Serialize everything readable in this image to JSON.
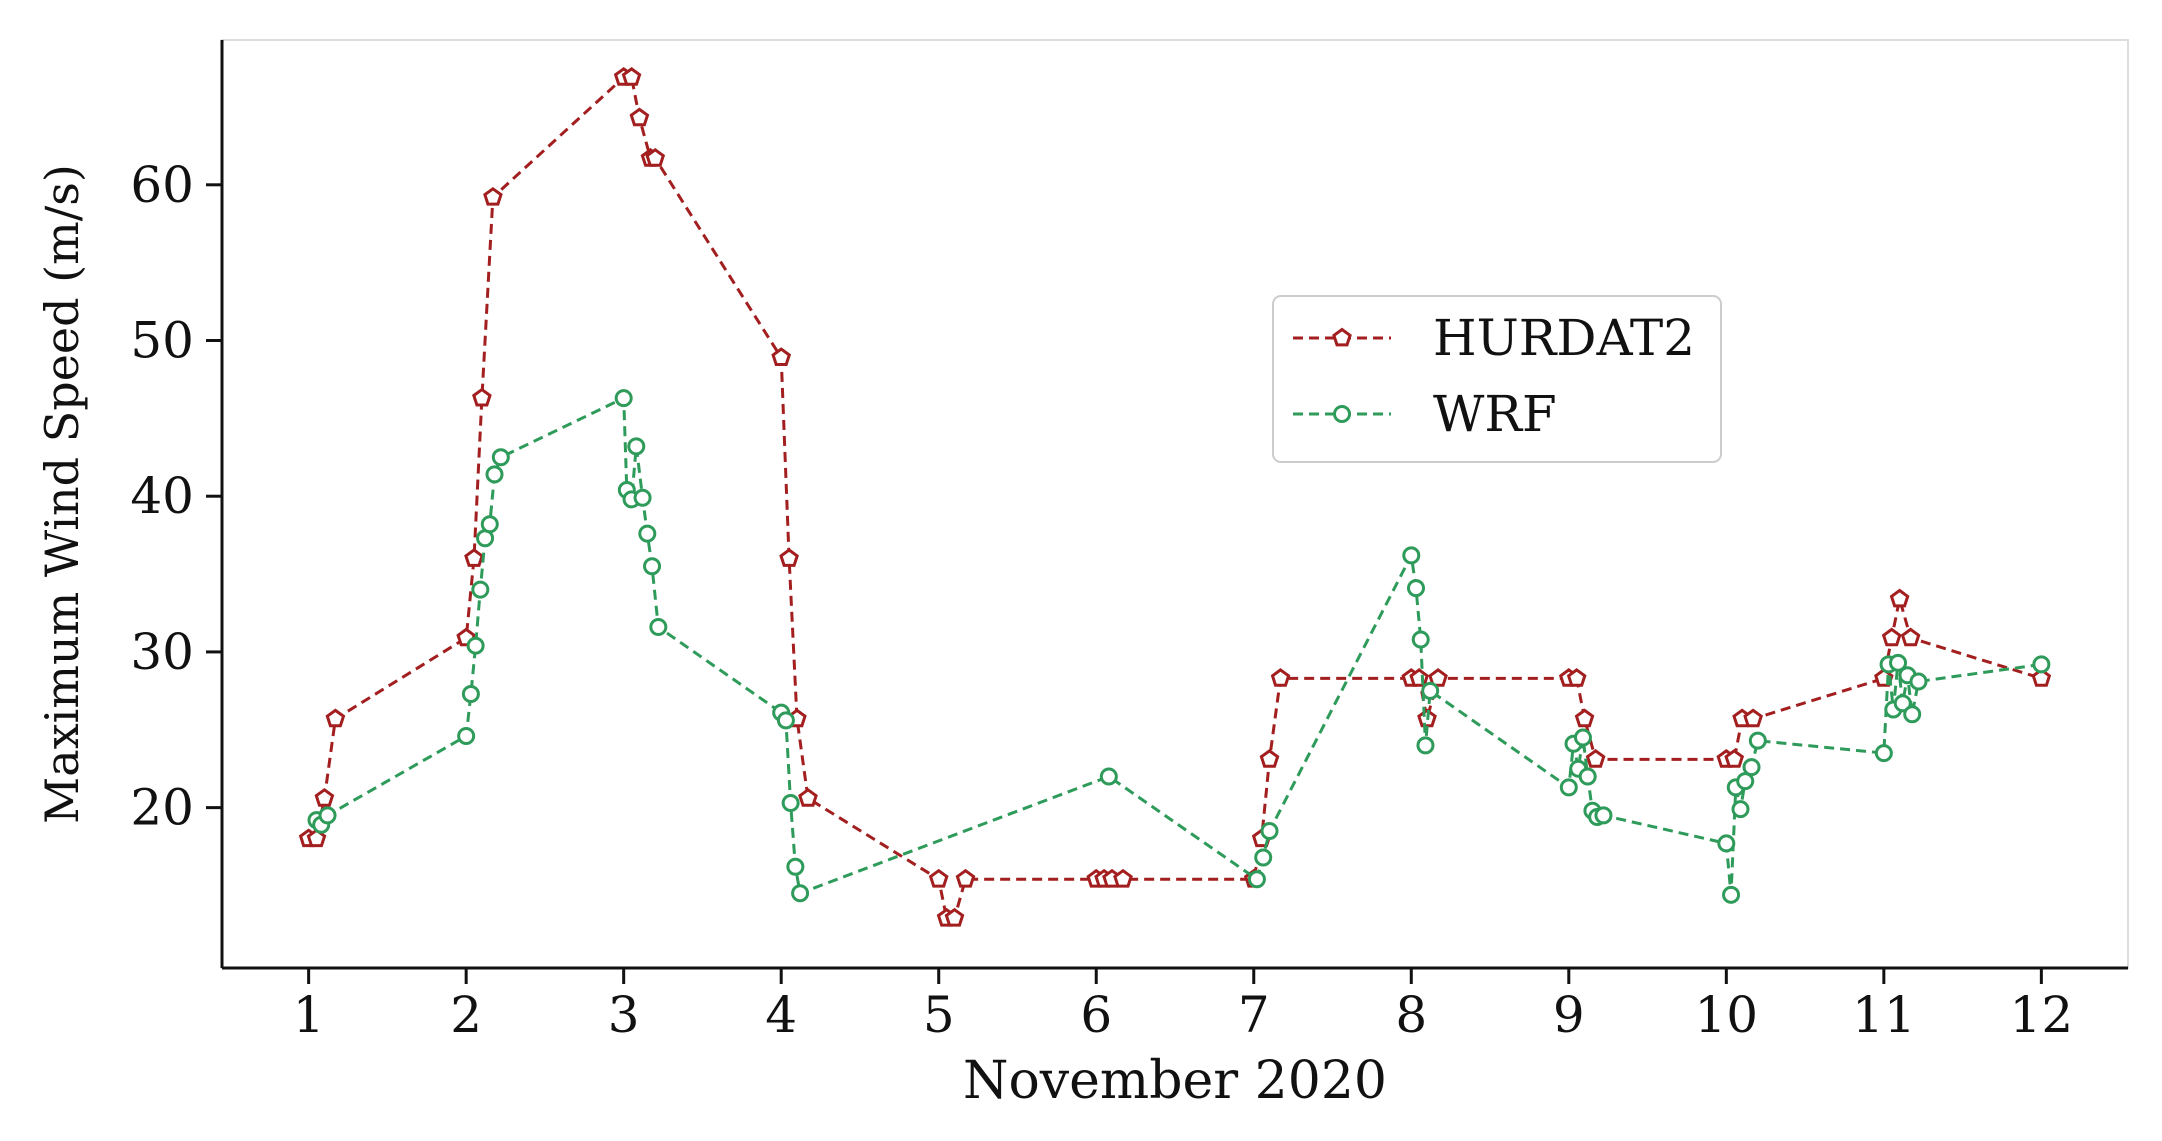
{
  "chart_data": {
    "type": "line",
    "title": "",
    "xlabel": "November 2020",
    "ylabel": "Maximum Wind Speed (m/s)",
    "xlim": [
      0.45,
      12.55
    ],
    "ylim": [
      9.7,
      69.3
    ],
    "xticks": [
      1,
      2,
      3,
      4,
      5,
      6,
      7,
      8,
      9,
      10,
      11,
      12
    ],
    "yticks": [
      20,
      30,
      40,
      50,
      60
    ],
    "grid": false,
    "legend_position": "center-right",
    "series": [
      {
        "name": "HURDAT2",
        "color": "#a31f1f",
        "marker": "pentagon",
        "linestyle": "dashed",
        "x": [
          1.0,
          1.05,
          1.1,
          1.17,
          2.0,
          2.05,
          2.1,
          2.17,
          3.0,
          3.05,
          3.1,
          3.17,
          3.2,
          4.0,
          4.05,
          4.1,
          4.17,
          5.0,
          5.05,
          5.1,
          5.17,
          6.0,
          6.05,
          6.1,
          6.17,
          7.0,
          7.05,
          7.1,
          7.17,
          8.0,
          8.05,
          8.1,
          8.17,
          9.0,
          9.05,
          9.1,
          9.17,
          10.0,
          10.05,
          10.1,
          10.17,
          11.0,
          11.05,
          11.1,
          11.17,
          12.0
        ],
        "y": [
          18.0,
          18.0,
          20.6,
          25.7,
          30.9,
          36.0,
          46.3,
          59.2,
          66.9,
          66.9,
          64.3,
          61.7,
          61.7,
          48.9,
          36.0,
          25.7,
          20.6,
          15.4,
          12.9,
          12.9,
          15.4,
          15.4,
          15.4,
          15.4,
          15.4,
          15.4,
          18.0,
          23.1,
          28.3,
          28.3,
          28.3,
          25.7,
          28.3,
          28.3,
          28.3,
          25.7,
          23.1,
          23.1,
          23.1,
          25.7,
          25.7,
          28.3,
          30.9,
          33.4,
          30.9,
          28.3
        ]
      },
      {
        "name": "WRF",
        "color": "#2e9b5a",
        "marker": "circle",
        "linestyle": "dashed",
        "x": [
          1.05,
          1.08,
          1.12,
          2.0,
          2.03,
          2.06,
          2.09,
          2.12,
          2.15,
          2.18,
          2.22,
          3.0,
          3.02,
          3.05,
          3.08,
          3.12,
          3.15,
          3.18,
          3.22,
          4.0,
          4.03,
          4.06,
          4.09,
          4.12,
          6.08,
          7.02,
          7.06,
          7.1,
          8.0,
          8.03,
          8.06,
          8.09,
          8.12,
          9.0,
          9.03,
          9.06,
          9.09,
          9.12,
          9.15,
          9.18,
          9.22,
          10.0,
          10.03,
          10.06,
          10.09,
          10.12,
          10.16,
          10.2,
          11.0,
          11.03,
          11.06,
          11.09,
          11.12,
          11.15,
          11.18,
          11.22,
          12.0
        ],
        "y": [
          19.2,
          18.9,
          19.5,
          24.6,
          27.3,
          30.4,
          34.0,
          37.3,
          38.2,
          41.4,
          42.5,
          46.3,
          40.4,
          39.8,
          43.2,
          39.9,
          37.6,
          35.5,
          31.6,
          26.1,
          25.6,
          20.3,
          16.2,
          14.5,
          22.0,
          15.4,
          16.8,
          18.5,
          36.2,
          34.1,
          30.8,
          24.0,
          27.5,
          21.3,
          24.1,
          22.5,
          24.5,
          22.0,
          19.8,
          19.4,
          19.5,
          17.7,
          14.4,
          21.3,
          19.9,
          21.7,
          22.6,
          24.3,
          23.5,
          29.2,
          26.3,
          29.3,
          26.7,
          28.5,
          26.0,
          28.1,
          29.2
        ]
      }
    ]
  }
}
